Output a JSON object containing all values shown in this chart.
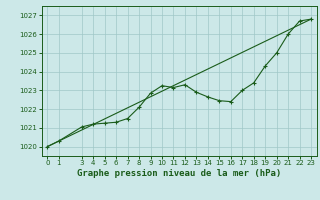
{
  "title": "Graphe pression niveau de la mer (hPa)",
  "background_color": "#cce8e8",
  "grid_color": "#a0c8c8",
  "line_color": "#1a5c1a",
  "xlim": [
    -0.5,
    23.5
  ],
  "ylim": [
    1019.5,
    1027.5
  ],
  "yticks": [
    1020,
    1021,
    1022,
    1023,
    1024,
    1025,
    1026,
    1027
  ],
  "xticks": [
    0,
    1,
    3,
    4,
    5,
    6,
    7,
    8,
    9,
    10,
    11,
    12,
    13,
    14,
    15,
    16,
    17,
    18,
    19,
    20,
    21,
    22,
    23
  ],
  "series1_x": [
    0,
    1,
    3,
    4,
    5,
    6,
    7,
    8,
    9,
    10,
    11,
    12,
    13,
    14,
    15,
    16,
    17,
    18,
    19,
    20,
    21,
    22,
    23
  ],
  "series1_y": [
    1020.0,
    1020.3,
    1021.05,
    1021.2,
    1021.25,
    1021.3,
    1021.5,
    1022.1,
    1022.85,
    1023.25,
    1023.15,
    1023.3,
    1022.9,
    1022.65,
    1022.45,
    1022.4,
    1023.0,
    1023.4,
    1024.3,
    1025.0,
    1026.0,
    1026.7,
    1026.8
  ],
  "series2_x": [
    0,
    23
  ],
  "series2_y": [
    1020.0,
    1026.8
  ],
  "title_fontsize": 6.5,
  "tick_fontsize": 5.0
}
